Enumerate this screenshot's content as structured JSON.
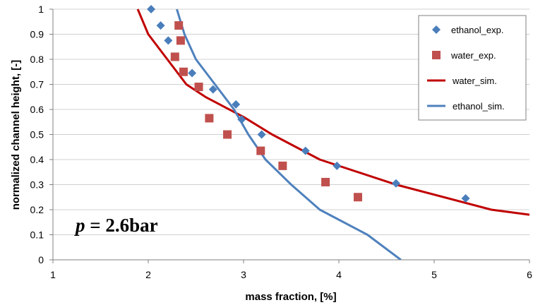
{
  "chart_data": {
    "type": "scatter",
    "xlabel": "mass fraction, [%]",
    "ylabel": "normalized channel height, [-]",
    "xlim": [
      1,
      6
    ],
    "ylim": [
      0,
      1
    ],
    "x_ticks": [
      "1",
      "2",
      "3",
      "4",
      "5",
      "6"
    ],
    "y_ticks": [
      "0",
      "0.1",
      "0.2",
      "0.3",
      "0.4",
      "0.5",
      "0.6",
      "0.7",
      "0.8",
      "0.9",
      "1"
    ],
    "grid": "horizontal",
    "legend_position": "top-right",
    "annotation": {
      "variable": "p",
      "value": " = 2.6bar"
    },
    "series": [
      {
        "name": "ethanol_exp.",
        "kind": "scatter",
        "marker": "diamond",
        "color": "#4A7EBB",
        "points": [
          [
            2.03,
            1.0
          ],
          [
            2.13,
            0.935
          ],
          [
            2.21,
            0.875
          ],
          [
            2.46,
            0.745
          ],
          [
            2.68,
            0.68
          ],
          [
            2.92,
            0.62
          ],
          [
            2.98,
            0.56
          ],
          [
            3.19,
            0.5
          ],
          [
            3.65,
            0.435
          ],
          [
            3.98,
            0.375
          ],
          [
            4.6,
            0.305
          ],
          [
            5.33,
            0.245
          ]
        ]
      },
      {
        "name": "water_exp.",
        "kind": "scatter",
        "marker": "square",
        "color": "#C0504D",
        "points": [
          [
            2.32,
            0.935
          ],
          [
            2.34,
            0.875
          ],
          [
            2.28,
            0.81
          ],
          [
            2.37,
            0.75
          ],
          [
            2.53,
            0.69
          ],
          [
            2.64,
            0.565
          ],
          [
            2.83,
            0.5
          ],
          [
            3.18,
            0.435
          ],
          [
            3.41,
            0.375
          ],
          [
            3.86,
            0.31
          ],
          [
            4.2,
            0.25
          ]
        ]
      },
      {
        "name": "water_sim.",
        "kind": "line",
        "color": "#C00000",
        "points": [
          [
            1.89,
            1.0
          ],
          [
            2.0,
            0.9
          ],
          [
            2.2,
            0.8
          ],
          [
            2.4,
            0.7
          ],
          [
            2.6,
            0.65
          ],
          [
            3.0,
            0.57
          ],
          [
            3.3,
            0.5
          ],
          [
            3.8,
            0.4
          ],
          [
            4.6,
            0.3
          ],
          [
            5.6,
            0.2
          ],
          [
            6.0,
            0.18
          ]
        ]
      },
      {
        "name": "ethanol_sim.",
        "kind": "line",
        "color": "#4F81BD",
        "points": [
          [
            2.3,
            1.0
          ],
          [
            2.38,
            0.9
          ],
          [
            2.5,
            0.8
          ],
          [
            2.7,
            0.7
          ],
          [
            2.9,
            0.6
          ],
          [
            3.05,
            0.5
          ],
          [
            3.23,
            0.4
          ],
          [
            3.5,
            0.3
          ],
          [
            3.8,
            0.2
          ],
          [
            4.3,
            0.1
          ],
          [
            4.65,
            0.0
          ]
        ]
      }
    ]
  }
}
